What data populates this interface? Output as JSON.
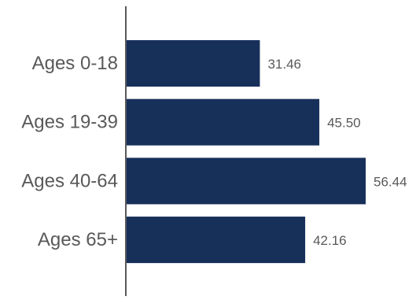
{
  "chart_data": {
    "type": "bar",
    "orientation": "horizontal",
    "categories": [
      "Ages 0-18",
      "Ages 19-39",
      "Ages 40-64",
      "Ages 65+"
    ],
    "values": [
      31.46,
      45.5,
      56.44,
      42.16
    ],
    "value_labels": [
      "31.46",
      "45.50",
      "56.44",
      "42.16"
    ],
    "title": "",
    "xlabel": "",
    "ylabel": "",
    "xlim": [
      0,
      56.44
    ],
    "grid": false,
    "legend": "none",
    "colors": {
      "bar": "#17305a",
      "axis": "#595959",
      "label_text": "#595959"
    }
  }
}
